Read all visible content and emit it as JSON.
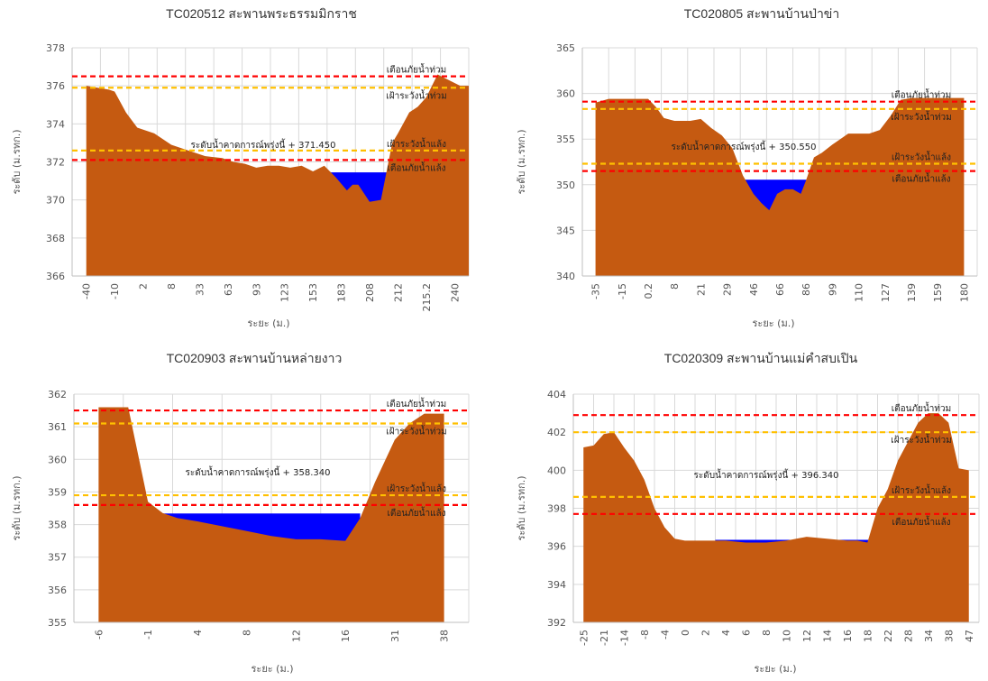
{
  "colors": {
    "terrain": "#C55A11",
    "water": "#0000FF",
    "red_line": "#FF0000",
    "yellow_line": "#FFC000",
    "grid": "#D9D9D9"
  },
  "chart_data": [
    {
      "type": "area",
      "title": "TC020512 สะพานพระธรรมมิกราช",
      "xlabel": "ระยะ (ม.)",
      "ylabel": "ระดับ (ม.รทก.)",
      "ylim": [
        366,
        378
      ],
      "yticks": [
        366,
        368,
        370,
        372,
        374,
        376,
        378
      ],
      "x_tick_labels": [
        "-40",
        "-10",
        "2",
        "8",
        "33",
        "63",
        "93",
        "123",
        "153",
        "183",
        "208",
        "212",
        "215.2",
        "240"
      ],
      "ground_profile": {
        "x_index": [
          0,
          0.8,
          1,
          1.4,
          1.8,
          2.4,
          3,
          3.6,
          4.2,
          4.8,
          5.2,
          5.6,
          6,
          6.4,
          6.8,
          7.2,
          7.6,
          8,
          8.4,
          8.8,
          9.2,
          9.4,
          9.6,
          10,
          10.4,
          10.8,
          11,
          11.4,
          11.7,
          12,
          12.4,
          12.8,
          13.2,
          13.5
        ],
        "elevation": [
          376.0,
          375.8,
          375.7,
          374.6,
          373.8,
          373.5,
          372.9,
          372.6,
          372.3,
          372.2,
          372.0,
          371.9,
          371.7,
          371.8,
          371.8,
          371.7,
          371.8,
          371.5,
          371.8,
          371.2,
          370.5,
          370.8,
          370.8,
          369.9,
          370.0,
          373.0,
          373.5,
          374.6,
          374.9,
          375.4,
          376.6,
          376.3,
          376.0,
          376.0
        ]
      },
      "water_surface": {
        "x_index": [
          8.6,
          10.7
        ],
        "level": 371.45
      },
      "water_label": "ระดับน้ำคาดการณ์พรุ่งนี้ + 371.450",
      "thresholds": [
        {
          "label": "เตือนภัยน้ำท่วม",
          "value": 376.5,
          "color": "#FF0000"
        },
        {
          "label": "เฝ้าระวังน้ำท่วม",
          "value": 375.9,
          "color": "#FFC000"
        },
        {
          "label": "เฝ้าระวังน้ำแล้ง",
          "value": 372.6,
          "color": "#FFC000"
        },
        {
          "label": "เตือนภัยน้ำแล้ง",
          "value": 372.1,
          "color": "#FF0000"
        }
      ]
    },
    {
      "type": "area",
      "title": "TC020805 สะพานบ้านป่าข่า",
      "xlabel": "ระยะ (ม.)",
      "ylabel": "ระดับ (ม.รทก.)",
      "ylim": [
        340,
        365
      ],
      "yticks": [
        340,
        345,
        350,
        355,
        360,
        365
      ],
      "x_tick_labels": [
        "-35",
        "-15",
        "0.2",
        "8",
        "21",
        "29",
        "46",
        "66",
        "86",
        "99",
        "110",
        "127",
        "139",
        "159",
        "180"
      ],
      "ground_profile": {
        "x_index": [
          0,
          0.5,
          1,
          1.5,
          2,
          2.3,
          2.6,
          3,
          3.3,
          3.6,
          4,
          4.4,
          4.8,
          5.2,
          5.6,
          6,
          6.3,
          6.6,
          6.9,
          7.2,
          7.5,
          7.8,
          8,
          8.3,
          8.6,
          9,
          9.3,
          9.6,
          10,
          10.4,
          10.8,
          11.2,
          11.6,
          12,
          12.5,
          13,
          13.5,
          14
        ],
        "elevation": [
          359.0,
          359.4,
          359.4,
          359.4,
          359.4,
          358.5,
          357.3,
          357.0,
          357.0,
          357.0,
          357.2,
          356.2,
          355.4,
          354.0,
          351.0,
          349.0,
          348.0,
          347.2,
          349.0,
          349.5,
          349.5,
          349.0,
          350.5,
          353.0,
          353.5,
          354.4,
          355.0,
          355.6,
          355.6,
          355.6,
          356.0,
          357.5,
          359.3,
          359.5,
          359.5,
          359.5,
          359.5,
          359.5
        ]
      },
      "water_surface": {
        "x_index": [
          5.5,
          8.5
        ],
        "level": 350.55
      },
      "water_label": "ระดับน้ำคาดการณ์พรุ่งนี้ + 350.550",
      "thresholds": [
        {
          "label": "เตือนภัยน้ำท่วม",
          "value": 359.1,
          "color": "#FF0000"
        },
        {
          "label": "เฝ้าระวังน้ำท่วม",
          "value": 358.3,
          "color": "#FFC000"
        },
        {
          "label": "เฝ้าระวังน้ำแล้ง",
          "value": 352.3,
          "color": "#FFC000"
        },
        {
          "label": "เตือนภัยน้ำแล้ง",
          "value": 351.5,
          "color": "#FF0000"
        }
      ]
    },
    {
      "type": "area",
      "title": "TC020903 สะพานบ้านหล่ายงาว",
      "xlabel": "ระยะ (ม.)",
      "ylabel": "ระดับ (ม.รทก.)",
      "ylim": [
        355,
        362
      ],
      "yticks": [
        355,
        356,
        357,
        358,
        359,
        360,
        361,
        362
      ],
      "x_tick_labels": [
        "-6",
        "-1",
        "4",
        "8",
        "12",
        "16",
        "31",
        "38"
      ],
      "ground_profile": {
        "x_index": [
          0,
          0.3,
          0.6,
          1,
          1.3,
          1.6,
          2,
          2.5,
          3,
          3.5,
          4,
          4.5,
          5,
          5.3,
          5.6,
          6,
          6.3,
          6.6,
          7
        ],
        "elevation": [
          361.6,
          361.6,
          361.6,
          358.7,
          358.35,
          358.2,
          358.1,
          357.95,
          357.8,
          357.65,
          357.55,
          357.55,
          357.5,
          358.2,
          359.3,
          360.6,
          361.1,
          361.4,
          361.4
        ]
      },
      "water_surface": {
        "x_index": [
          1.1,
          5.3
        ],
        "level": 358.34
      },
      "water_label": "ระดับน้ำคาดการณ์พรุ่งนี้ + 358.340",
      "thresholds": [
        {
          "label": "เตือนภัยน้ำท่วม",
          "value": 361.5,
          "color": "#FF0000"
        },
        {
          "label": "เฝ้าระวังน้ำท่วม",
          "value": 361.1,
          "color": "#FFC000"
        },
        {
          "label": "เฝ้าระวังน้ำแล้ง",
          "value": 358.9,
          "color": "#FFC000"
        },
        {
          "label": "เตือนภัยน้ำแล้ง",
          "value": 358.6,
          "color": "#FF0000"
        }
      ]
    },
    {
      "type": "area",
      "title": "TC020309 สะพานบ้านแม่คำสบเปิน",
      "xlabel": "ระยะ (ม.)",
      "ylabel": "ระดับ (ม.รทก.)",
      "ylim": [
        392,
        404
      ],
      "yticks": [
        392,
        394,
        396,
        398,
        400,
        402,
        404
      ],
      "x_tick_labels": [
        "-25",
        "-21",
        "-14",
        "-8",
        "-4",
        "0",
        "2",
        "4",
        "6",
        "8",
        "10",
        "12",
        "14",
        "16",
        "18",
        "22",
        "28",
        "34",
        "38",
        "47"
      ],
      "ground_profile": {
        "x_index": [
          0,
          0.5,
          1,
          1.5,
          2,
          2.5,
          3,
          3.5,
          4,
          4.5,
          5,
          6,
          7,
          8,
          9,
          10,
          11,
          12,
          13,
          13.5,
          14,
          14.5,
          15,
          15.5,
          16,
          16.5,
          17,
          17.5,
          18,
          18.5,
          19
        ],
        "elevation": [
          401.2,
          401.3,
          401.9,
          402.0,
          401.2,
          400.5,
          399.5,
          398.0,
          397.0,
          396.4,
          396.3,
          396.3,
          396.3,
          396.2,
          396.2,
          396.3,
          396.5,
          396.4,
          396.3,
          396.3,
          396.2,
          398.0,
          399.0,
          400.5,
          401.5,
          402.5,
          403.0,
          403.0,
          402.5,
          400.1,
          400.0
        ]
      },
      "water_surface": {
        "x_index": [
          6.5,
          14.1
        ],
        "level": 396.34
      },
      "water_label": "ระดับน้ำคาดการณ์พรุ่งนี้ + 396.340",
      "thresholds": [
        {
          "label": "เตือนภัยน้ำท่วม",
          "value": 402.9,
          "color": "#FF0000"
        },
        {
          "label": "เฝ้าระวังน้ำท่วม",
          "value": 402.0,
          "color": "#FFC000"
        },
        {
          "label": "เฝ้าระวังน้ำแล้ง",
          "value": 398.6,
          "color": "#FFC000"
        },
        {
          "label": "เตือนภัยน้ำแล้ง",
          "value": 397.7,
          "color": "#FF0000"
        }
      ]
    }
  ]
}
